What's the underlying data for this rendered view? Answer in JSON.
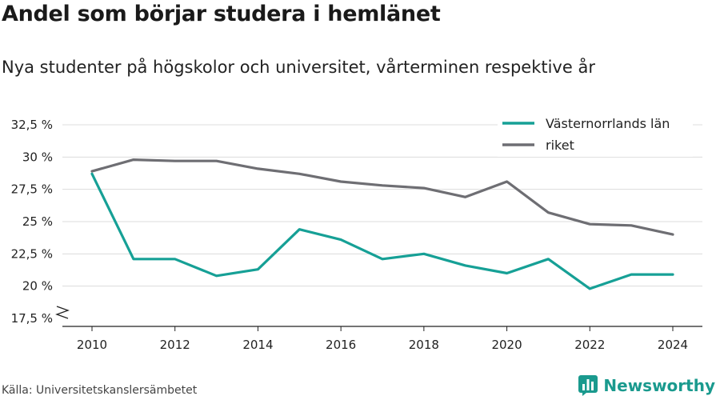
{
  "title": "Andel som börjar studera i hemlänet",
  "subtitle": "Nya studenter på högskolor och universitet, vårterminen respektive år",
  "source": "Källa: Universitetskanslersämbetet",
  "brand": {
    "name": "Newsworthy",
    "icon": "newsworthy-logo-icon",
    "color": "#1a9a8e"
  },
  "chart_data": {
    "type": "line",
    "x": [
      2010,
      2011,
      2012,
      2013,
      2014,
      2015,
      2016,
      2017,
      2018,
      2019,
      2020,
      2021,
      2022,
      2023,
      2024
    ],
    "series": [
      {
        "name": "Västernorrlands län",
        "color": "#16a096",
        "values": [
          28.7,
          22.1,
          22.1,
          20.8,
          21.3,
          24.4,
          23.6,
          22.1,
          22.5,
          21.6,
          21.0,
          22.1,
          19.8,
          20.9,
          20.9
        ]
      },
      {
        "name": "riket",
        "color": "#6e6e73",
        "values": [
          28.9,
          29.8,
          29.7,
          29.7,
          29.1,
          28.7,
          28.1,
          27.8,
          27.6,
          26.9,
          28.1,
          25.7,
          24.8,
          24.7,
          24.0
        ]
      }
    ],
    "x_ticks": [
      2010,
      2012,
      2014,
      2016,
      2018,
      2020,
      2022,
      2024
    ],
    "x_tick_labels": [
      "2010",
      "2012",
      "2014",
      "2016",
      "2018",
      "2020",
      "2022",
      "2024"
    ],
    "y_ticks": [
      17.5,
      20,
      22.5,
      25,
      27.5,
      30,
      32.5
    ],
    "y_tick_labels": [
      "17,5 %",
      "20 %",
      "22,5 %",
      "25 %",
      "27,5 %",
      "30 %",
      "32,5 %"
    ],
    "xlim": [
      2010,
      2024
    ],
    "ylim": [
      17.5,
      32.5
    ],
    "y_axis_break": true,
    "grid": "horizontal",
    "legend_position": "top-right"
  }
}
